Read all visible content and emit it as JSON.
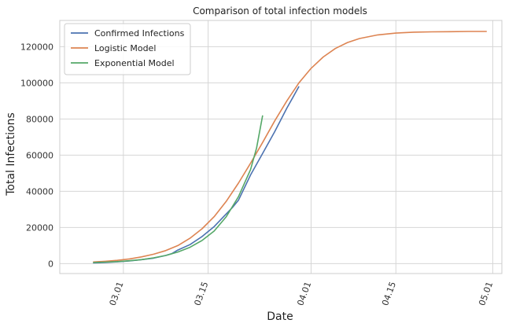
{
  "chart_data": {
    "type": "line",
    "title": "Comparison of total infection models",
    "xlabel": "Date",
    "ylabel": "Total Infections",
    "x_ticks": [
      {
        "day": 8,
        "label": "03.01"
      },
      {
        "day": 22,
        "label": "03.15"
      },
      {
        "day": 39,
        "label": "04.01"
      },
      {
        "day": 53,
        "label": "04.15"
      },
      {
        "day": 69,
        "label": "05.01"
      }
    ],
    "y_ticks": [
      0,
      20000,
      40000,
      60000,
      80000,
      100000,
      120000
    ],
    "xlim": [
      -2.5,
      70.5
    ],
    "ylim": [
      -5500,
      134500
    ],
    "grid": true,
    "legend_position": "top-left",
    "series": [
      {
        "name": "Confirmed Infections",
        "color": "#4c72b0",
        "x": [
          3,
          5,
          7,
          9,
          11,
          13,
          15,
          16,
          17,
          19,
          21,
          23,
          25,
          26,
          27,
          29,
          31,
          33,
          35,
          36,
          37
        ],
        "y": [
          400,
          600,
          1000,
          1500,
          2200,
          3000,
          4500,
          5500,
          7500,
          10500,
          15000,
          20500,
          27500,
          31000,
          35000,
          49000,
          61000,
          73000,
          86000,
          92000,
          98000
        ]
      },
      {
        "name": "Logistic Model",
        "color": "#dd8452",
        "x": [
          3,
          5,
          7,
          9,
          11,
          13,
          15,
          17,
          19,
          21,
          23,
          25,
          27,
          29,
          31,
          33,
          35,
          37,
          39,
          41,
          43,
          45,
          47,
          50,
          53,
          56,
          59,
          62,
          65,
          68
        ],
        "y": [
          900,
          1300,
          1800,
          2600,
          3700,
          5200,
          7200,
          10000,
          14000,
          19300,
          26000,
          34500,
          44500,
          55500,
          67000,
          79000,
          90000,
          100000,
          108000,
          114300,
          119000,
          122300,
          124500,
          126500,
          127500,
          128000,
          128200,
          128300,
          128400,
          128400
        ]
      },
      {
        "name": "Exponential Model",
        "color": "#55a868",
        "x": [
          3,
          5,
          7,
          9,
          11,
          13,
          15,
          17,
          19,
          21,
          23,
          25,
          27,
          29,
          30,
          31
        ],
        "y": [
          600,
          800,
          1100,
          1600,
          2200,
          3200,
          4500,
          6400,
          9000,
          12800,
          18000,
          26000,
          37000,
          52000,
          64000,
          82000
        ]
      }
    ]
  }
}
